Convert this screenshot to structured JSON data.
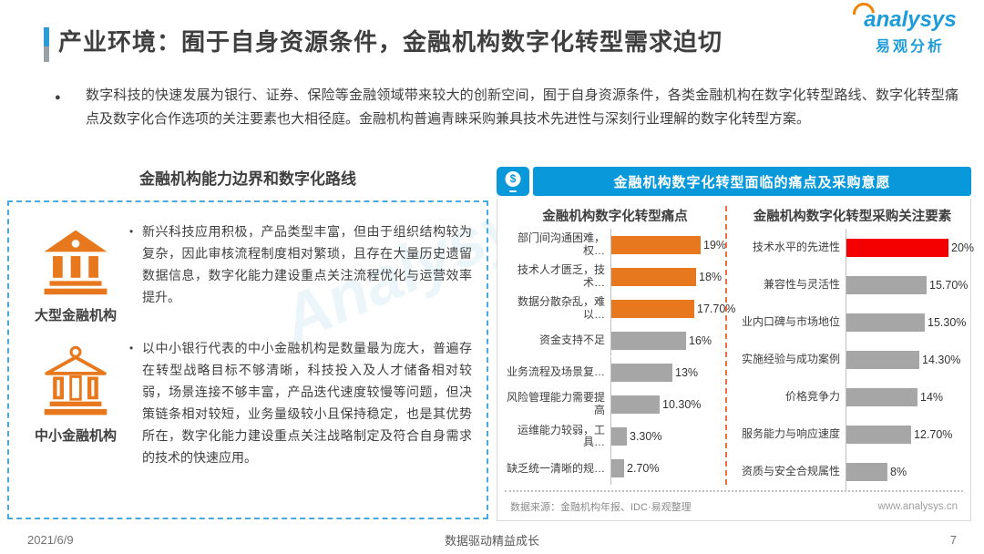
{
  "page": {
    "title": "产业环境：囿于自身资源条件，金融机构数字化转型需求迫切",
    "intro": "数字科技的快速发展为银行、证券、保险等金融领域带来较大的创新空间，囿于自身资源条件，各类金融机构在数字化转型路线、数字化转型痛点及数字化合作选项的关注要素也大相径庭。金融机构普遍青睐采购兼具技术先进性与深刻行业理解的数字化转型方案。",
    "bullet_glyph": "●",
    "watermark": "Analysys",
    "watermark2": "易观分析",
    "footer": {
      "date": "2021/6/9",
      "center": "数据驱动精益成长",
      "page_number": "7"
    }
  },
  "logo": {
    "brand_en": "analysys",
    "brand_cn": "易观分析"
  },
  "left_panel": {
    "title": "金融机构能力边界和数字化路线",
    "items": [
      {
        "label": "大型金融机构",
        "bullet": "•",
        "text": "新兴科技应用积极，产品类型丰富，但由于组织结构较为复杂，因此审核流程制度相对繁琐，且存在大量历史遗留数据信息，数字化能力建设重点关注流程优化与运营效率提升。"
      },
      {
        "label": "中小金融机构",
        "bullet": "•",
        "text": "以中小银行代表的中小金融机构是数量最为庞大，普遍存在转型战略目标不够清晰，科技投入及人才储备相对较弱，场景连接不够丰富，产品迭代速度较慢等问题，但决策链条相对较短，业务量级较小且保持稳定，也是其优势所在，数字化能力建设重点关注战略制定及符合自身需求的技术的快速应用。"
      }
    ]
  },
  "right_panel": {
    "header": "金融机构数字化转型面临的痛点及采购意愿",
    "header_icon_glyph": "$",
    "source": "数据来源：金融机构年报、IDC·易观整理",
    "website": "www.analysys.cn"
  },
  "chart_data": [
    {
      "type": "bar",
      "orientation": "horizontal",
      "title": "金融机构数字化转型痛点",
      "categories": [
        "部门间沟通困难，权…",
        "技术人才匮乏，技术…",
        "数据分散杂乱，难以…",
        "资金支持不足",
        "业务流程及场景复…",
        "风险管理能力需要提高",
        "运维能力较弱，工具…",
        "缺乏统一清晰的规…"
      ],
      "values": [
        19,
        18,
        17.7,
        16,
        13,
        10.3,
        3.3,
        2.7
      ],
      "labels": [
        "19%",
        "18%",
        "17.70%",
        "16%",
        "13%",
        "10.30%",
        "3.30%",
        "2.70%"
      ],
      "bar_colors": [
        "#E8781E",
        "#E8781E",
        "#E8781E",
        "#A6A6A6",
        "#A6A6A6",
        "#A6A6A6",
        "#A6A6A6",
        "#A6A6A6"
      ],
      "xlim": [
        0,
        20
      ],
      "grid": false,
      "legend": "none"
    },
    {
      "type": "bar",
      "orientation": "horizontal",
      "title": "金融机构数字化转型采购关注要素",
      "categories": [
        "技术水平的先进性",
        "兼容性与灵活性",
        "业内口碑与市场地位",
        "实施经验与成功案例",
        "价格竞争力",
        "服务能力与响应速度",
        "资质与安全合规属性"
      ],
      "values": [
        20,
        15.7,
        15.3,
        14.3,
        14,
        12.7,
        8
      ],
      "labels": [
        "20%",
        "15.70%",
        "15.30%",
        "14.30%",
        "14%",
        "12.70%",
        "8%"
      ],
      "bar_colors": [
        "#F40000",
        "#A6A6A6",
        "#A6A6A6",
        "#A6A6A6",
        "#A6A6A6",
        "#A6A6A6",
        "#A6A6A6"
      ],
      "xlim": [
        0,
        20
      ],
      "grid": false,
      "legend": "none"
    }
  ],
  "colors": {
    "accent_blue": "#0999DA",
    "dashed_blue": "#4AA8DC",
    "orange": "#E8781E",
    "red": "#F40000",
    "gray_bar": "#A6A6A6"
  }
}
